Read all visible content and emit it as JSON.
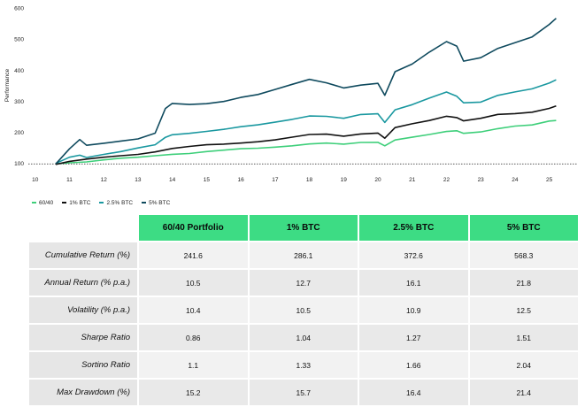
{
  "chart_data": {
    "type": "line",
    "title": "",
    "xlabel": "",
    "ylabel": "Performance",
    "xlim": [
      9.8,
      25.5
    ],
    "ylim": [
      95,
      610
    ],
    "x_ticks": [
      "10",
      "11",
      "12",
      "13",
      "14",
      "15",
      "16",
      "17",
      "18",
      "19",
      "20",
      "21",
      "22",
      "23",
      "24",
      "25"
    ],
    "y_ticks": [
      "100",
      "200",
      "300",
      "400",
      "500",
      "600"
    ],
    "baseline": 100,
    "grid": false,
    "legend_position": "bottom-left",
    "series": [
      {
        "name": "60/40",
        "color": "#3ecf7a",
        "x": [
          10.6,
          11,
          11.5,
          12,
          12.5,
          13,
          13.5,
          14,
          14.5,
          15,
          15.5,
          16,
          16.5,
          17,
          17.5,
          18,
          18.5,
          19,
          19.5,
          20,
          20.2,
          20.5,
          21,
          21.5,
          22,
          22.3,
          22.5,
          23,
          23.5,
          24,
          24.5,
          25,
          25.2
        ],
        "y": [
          100,
          105,
          108,
          113,
          117,
          120,
          126,
          132,
          135,
          140,
          143,
          147,
          150,
          155,
          160,
          165,
          166,
          162,
          168,
          170,
          160,
          178,
          185,
          193,
          203,
          207,
          200,
          204,
          213,
          220,
          224,
          238,
          241
        ]
      },
      {
        "name": "1% BTC",
        "color": "#111111",
        "x": [
          10.6,
          11,
          11.5,
          12,
          12.5,
          13,
          13.5,
          14,
          14.5,
          15,
          15.5,
          16,
          16.5,
          17,
          17.5,
          18,
          18.5,
          19,
          19.5,
          20,
          20.2,
          20.5,
          21,
          21.5,
          22,
          22.3,
          22.5,
          23,
          23.5,
          24,
          24.5,
          25,
          25.2
        ],
        "y": [
          100,
          108,
          114,
          120,
          126,
          132,
          140,
          150,
          155,
          160,
          163,
          168,
          173,
          178,
          185,
          193,
          195,
          190,
          198,
          200,
          182,
          215,
          228,
          240,
          255,
          250,
          238,
          245,
          258,
          262,
          268,
          280,
          286
        ]
      },
      {
        "name": "2.5% BTC",
        "color": "#1a98a0",
        "x": [
          10.6,
          11,
          11.3,
          11.5,
          12,
          12.5,
          13,
          13.5,
          13.8,
          14,
          14.5,
          15,
          15.5,
          16,
          16.5,
          17,
          17.5,
          18,
          18.5,
          19,
          19.5,
          20,
          20.2,
          20.5,
          21,
          21.5,
          22,
          22.3,
          22.5,
          23,
          23.5,
          24,
          24.5,
          25,
          25.2
        ],
        "y": [
          100,
          120,
          128,
          122,
          132,
          140,
          150,
          160,
          185,
          195,
          200,
          205,
          210,
          218,
          225,
          235,
          245,
          255,
          252,
          245,
          258,
          262,
          235,
          275,
          290,
          310,
          330,
          318,
          298,
          300,
          320,
          330,
          340,
          360,
          372
        ]
      },
      {
        "name": "5% BTC",
        "color": "#0f4a5e",
        "x": [
          10.6,
          11,
          11.3,
          11.5,
          12,
          12.5,
          13,
          13.5,
          13.8,
          14,
          14.5,
          15,
          15.5,
          16,
          16.5,
          17,
          17.5,
          18,
          18.5,
          19,
          19.5,
          20,
          20.2,
          20.5,
          21,
          21.5,
          22,
          22.3,
          22.5,
          23,
          23.5,
          24,
          24.5,
          25,
          25.2
        ],
        "y": [
          100,
          150,
          180,
          160,
          165,
          172,
          180,
          200,
          280,
          295,
          290,
          292,
          300,
          315,
          325,
          340,
          355,
          370,
          360,
          345,
          355,
          360,
          320,
          395,
          420,
          460,
          495,
          480,
          430,
          440,
          470,
          490,
          510,
          550,
          568
        ]
      }
    ]
  },
  "legend": [
    {
      "label": "60/40",
      "color": "#3ecf7a"
    },
    {
      "label": "1% BTC",
      "color": "#111111"
    },
    {
      "label": "2.5% BTC",
      "color": "#1a98a0"
    },
    {
      "label": "5% BTC",
      "color": "#0f4a5e"
    }
  ],
  "table": {
    "headers": [
      "60/40 Portfolio",
      "1% BTC",
      "2.5% BTC",
      "5% BTC"
    ],
    "rows": [
      {
        "label": "Cumulative Return (%)",
        "values": [
          "241.6",
          "286.1",
          "372.6",
          "568.3"
        ]
      },
      {
        "label": "Annual Return (% p.a.)",
        "values": [
          "10.5",
          "12.7",
          "16.1",
          "21.8"
        ]
      },
      {
        "label": "Volatility (% p.a.)",
        "values": [
          "10.4",
          "10.5",
          "10.9",
          "12.5"
        ]
      },
      {
        "label": "Sharpe Ratio",
        "values": [
          "0.86",
          "1.04",
          "1.27",
          "1.51"
        ]
      },
      {
        "label": "Sortino Ratio",
        "values": [
          "1.1",
          "1.33",
          "1.66",
          "2.04"
        ]
      },
      {
        "label": "Max Drawdown (%)",
        "values": [
          "15.2",
          "15.7",
          "16.4",
          "21.4"
        ]
      }
    ]
  }
}
